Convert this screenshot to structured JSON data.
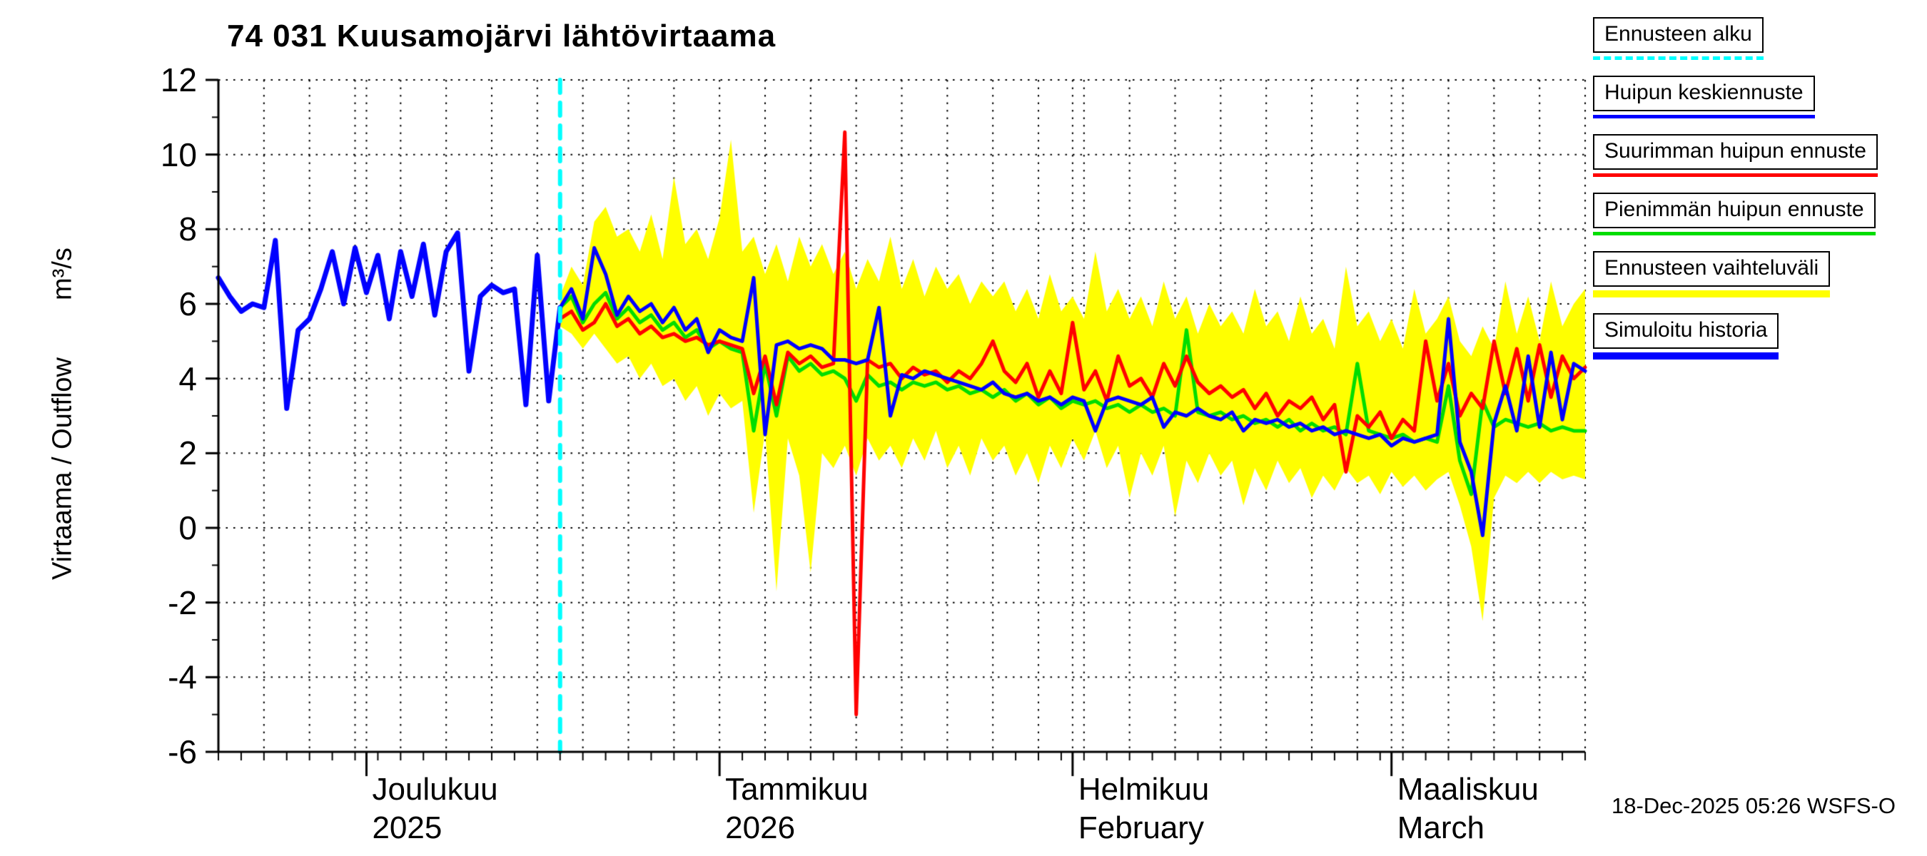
{
  "chart_data": {
    "type": "line",
    "title": "74 031 Kuusamojärvi lähtövirtaama",
    "ylabel": "Virtaama / Outflow",
    "ylabel_units": "m³/s",
    "ylim": [
      -6,
      12
    ],
    "yticks": [
      -6,
      -4,
      -2,
      0,
      2,
      4,
      6,
      8,
      10,
      12
    ],
    "x_domain_days": [
      0,
      120
    ],
    "x_minor_tick_step_days": 2,
    "x_grid_step_days": 4,
    "months": [
      {
        "day": 13,
        "name": "Joulukuu",
        "sub": "2025"
      },
      {
        "day": 44,
        "name": "Tammikuu",
        "sub": "2026"
      },
      {
        "day": 75,
        "name": "Helmikuu",
        "sub": "February"
      },
      {
        "day": 103,
        "name": "Maaliskuu",
        "sub": "March"
      }
    ],
    "forecast_start_day": 30,
    "forecast_line": {
      "name": "Ennusteen alku",
      "color": "#00ffff",
      "style": "dashed",
      "width": 6
    },
    "band": {
      "name": "Ennusteen vaihteluväli",
      "color": "#ffff00",
      "start_day": 30,
      "upper": [
        6.2,
        7.0,
        6.5,
        8.2,
        8.6,
        7.8,
        8.0,
        7.4,
        8.4,
        7.2,
        9.4,
        7.6,
        8.0,
        7.2,
        8.3,
        10.4,
        7.4,
        7.8,
        6.8,
        7.6,
        6.6,
        7.8,
        7.0,
        7.6,
        6.8,
        7.4,
        6.4,
        7.2,
        6.6,
        7.8,
        6.4,
        7.2,
        6.2,
        7.0,
        6.4,
        6.8,
        6.0,
        6.6,
        6.2,
        6.6,
        5.8,
        6.4,
        5.6,
        6.8,
        5.8,
        6.2,
        5.6,
        7.4,
        5.8,
        6.4,
        5.6,
        6.2,
        5.4,
        6.6,
        5.6,
        6.2,
        5.2,
        6.0,
        5.4,
        5.8,
        5.2,
        6.4,
        5.4,
        5.8,
        5.0,
        6.2,
        5.2,
        5.6,
        4.8,
        7.0,
        5.4,
        5.8,
        5.0,
        5.6,
        4.8,
        6.4,
        5.2,
        5.6,
        6.2,
        5.0,
        4.6,
        5.4,
        4.8,
        6.6,
        5.2,
        6.2,
        5.0,
        6.6,
        5.4,
        6.0,
        6.4
      ],
      "lower": [
        5.4,
        5.2,
        4.8,
        5.2,
        4.8,
        4.4,
        4.6,
        4.0,
        4.4,
        3.8,
        4.0,
        3.4,
        3.8,
        3.0,
        3.6,
        3.2,
        3.4,
        0.4,
        2.6,
        -1.7,
        2.4,
        1.4,
        -1.2,
        2.0,
        1.6,
        2.2,
        1.4,
        2.4,
        1.8,
        2.2,
        1.6,
        2.4,
        1.8,
        2.6,
        1.6,
        2.2,
        1.4,
        2.4,
        1.8,
        2.2,
        1.4,
        2.0,
        1.2,
        2.2,
        1.6,
        2.4,
        1.8,
        2.6,
        1.6,
        2.2,
        0.8,
        2.0,
        1.4,
        2.2,
        0.3,
        1.8,
        1.2,
        2.0,
        1.4,
        1.8,
        0.6,
        1.6,
        1.0,
        1.8,
        1.2,
        1.6,
        0.8,
        1.4,
        1.0,
        1.6,
        1.2,
        1.4,
        0.9,
        1.5,
        1.1,
        1.4,
        1.0,
        1.3,
        1.5,
        0.6,
        -0.5,
        -2.5,
        0.8,
        1.4,
        1.2,
        1.5,
        1.2,
        1.5,
        1.3,
        1.4,
        1.3
      ]
    },
    "series": [
      {
        "name": "Simuloitu historia",
        "color": "#0000ff",
        "width": 7,
        "start_day": 0,
        "values": [
          6.7,
          6.2,
          5.8,
          6.0,
          5.9,
          7.7,
          3.2,
          5.3,
          5.6,
          6.4,
          7.4,
          6.0,
          7.5,
          6.3,
          7.3,
          5.6,
          7.4,
          6.2,
          7.6,
          5.7,
          7.4,
          7.9,
          4.2,
          6.2,
          6.5,
          6.3,
          6.4,
          3.3,
          7.3,
          3.4,
          5.9
        ]
      },
      {
        "name": "Huipun keskiennuste",
        "color": "#0000ff",
        "width": 5,
        "start_day": 30,
        "values": [
          5.9,
          6.4,
          5.6,
          7.5,
          6.8,
          5.7,
          6.2,
          5.8,
          6.0,
          5.5,
          5.9,
          5.3,
          5.6,
          4.7,
          5.3,
          5.1,
          5.0,
          6.7,
          2.5,
          4.9,
          5.0,
          4.8,
          4.9,
          4.8,
          4.5,
          4.5,
          4.4,
          4.5,
          5.9,
          3.0,
          4.1,
          4.0,
          4.2,
          4.1,
          4.0,
          3.9,
          3.8,
          3.7,
          3.9,
          3.6,
          3.5,
          3.6,
          3.4,
          3.5,
          3.3,
          3.5,
          3.4,
          2.6,
          3.4,
          3.5,
          3.4,
          3.3,
          3.5,
          2.7,
          3.1,
          3.0,
          3.2,
          3.0,
          2.9,
          3.1,
          2.6,
          2.9,
          2.8,
          2.9,
          2.7,
          2.8,
          2.6,
          2.7,
          2.5,
          2.6,
          2.5,
          2.4,
          2.5,
          2.2,
          2.4,
          2.3,
          2.4,
          2.5,
          5.6,
          2.3,
          1.5,
          -0.2,
          2.8,
          3.8,
          2.6,
          4.6,
          2.7,
          4.7,
          2.9,
          4.4,
          4.2
        ]
      },
      {
        "name": "Suurimman huipun ennuste",
        "color": "#ff0000",
        "width": 5,
        "start_day": 30,
        "values": [
          5.6,
          5.8,
          5.3,
          5.5,
          6.0,
          5.4,
          5.6,
          5.2,
          5.4,
          5.1,
          5.2,
          5.0,
          5.1,
          4.9,
          5.0,
          4.9,
          4.8,
          3.6,
          4.6,
          3.3,
          4.7,
          4.4,
          4.6,
          4.3,
          4.4,
          10.6,
          -5.0,
          4.5,
          4.3,
          4.4,
          4.0,
          4.3,
          4.1,
          4.2,
          3.9,
          4.2,
          4.0,
          4.4,
          5.0,
          4.2,
          3.9,
          4.4,
          3.5,
          4.2,
          3.6,
          5.5,
          3.7,
          4.2,
          3.4,
          4.6,
          3.8,
          4.0,
          3.5,
          4.4,
          3.8,
          4.6,
          3.9,
          3.6,
          3.8,
          3.5,
          3.7,
          3.2,
          3.6,
          3.0,
          3.4,
          3.2,
          3.5,
          2.9,
          3.3,
          1.5,
          3.0,
          2.7,
          3.1,
          2.4,
          2.9,
          2.6,
          5.0,
          3.4,
          4.4,
          3.0,
          3.6,
          3.2,
          5.0,
          3.6,
          4.8,
          3.4,
          4.9,
          3.5,
          4.6,
          4.0,
          4.3
        ]
      },
      {
        "name": "Pienimmän huipun ennuste",
        "color": "#00dd00",
        "width": 5,
        "start_day": 30,
        "values": [
          5.9,
          6.2,
          5.5,
          6.0,
          6.3,
          5.6,
          5.9,
          5.5,
          5.7,
          5.3,
          5.5,
          5.1,
          5.3,
          4.8,
          5.0,
          4.8,
          4.7,
          2.6,
          4.4,
          3.0,
          4.6,
          4.2,
          4.4,
          4.1,
          4.2,
          4.0,
          3.4,
          4.1,
          3.8,
          3.9,
          3.7,
          3.9,
          3.8,
          3.9,
          3.7,
          3.8,
          3.6,
          3.7,
          3.5,
          3.7,
          3.4,
          3.6,
          3.3,
          3.5,
          3.2,
          3.4,
          3.3,
          3.4,
          3.2,
          3.3,
          3.1,
          3.3,
          3.1,
          3.2,
          3.0,
          5.3,
          3.1,
          3.0,
          3.1,
          2.9,
          3.0,
          2.8,
          2.9,
          2.7,
          2.9,
          2.6,
          2.8,
          2.6,
          2.7,
          2.5,
          4.4,
          2.6,
          2.5,
          2.4,
          2.5,
          2.3,
          2.4,
          2.3,
          3.8,
          1.8,
          0.9,
          3.4,
          2.7,
          2.9,
          2.8,
          2.7,
          2.8,
          2.6,
          2.7,
          2.6,
          2.6
        ]
      }
    ],
    "legend": [
      {
        "label": "Ennusteen alku",
        "color": "#00ffff",
        "style": "dashed",
        "weight": 5
      },
      {
        "label": "Huipun keskiennuste",
        "color": "#0000ff",
        "style": "solid",
        "weight": 5
      },
      {
        "label": "Suurimman huipun ennuste",
        "color": "#ff0000",
        "style": "solid",
        "weight": 5
      },
      {
        "label": "Pienimmän huipun ennuste",
        "color": "#00dd00",
        "style": "solid",
        "weight": 5
      },
      {
        "label": "Ennusteen vaihteluväli",
        "color": "#ffff00",
        "style": "solid",
        "weight": 10
      },
      {
        "label": "Simuloitu historia",
        "color": "#0000ff",
        "style": "solid",
        "weight": 10
      }
    ]
  },
  "footer": {
    "timestamp": "18-Dec-2025 05:26 WSFS-O"
  }
}
